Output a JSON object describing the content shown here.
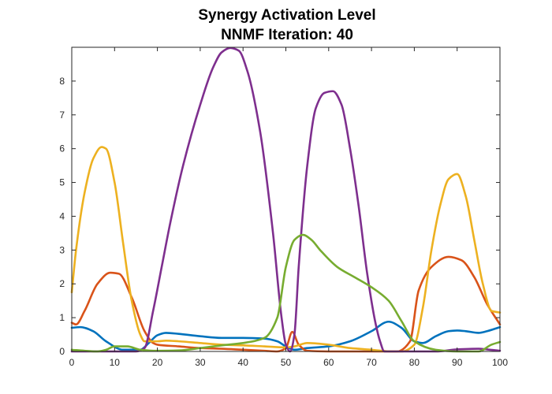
{
  "chart_data": {
    "type": "line",
    "title": "Synergy Activation Level",
    "subtitle": "NNMF Iteration: 40",
    "xlabel": "",
    "ylabel": "",
    "xlim": [
      0,
      100
    ],
    "ylim": [
      0,
      9
    ],
    "xticks": [
      "0",
      "10",
      "20",
      "30",
      "40",
      "50",
      "60",
      "70",
      "80",
      "90",
      "100"
    ],
    "yticks": [
      "0",
      "1",
      "2",
      "3",
      "4",
      "5",
      "6",
      "7",
      "8"
    ],
    "grid": false,
    "legend": "none",
    "series": [
      {
        "color": "#0072BD",
        "x": [
          0,
          2,
          5,
          8,
          12,
          16,
          18,
          20,
          22,
          25,
          30,
          35,
          40,
          45,
          48,
          50,
          52,
          55,
          60,
          65,
          70,
          74,
          77,
          80,
          82,
          85,
          88,
          90,
          92,
          95,
          97,
          100
        ],
        "y": [
          0.7,
          0.72,
          0.6,
          0.3,
          0.05,
          0.05,
          0.25,
          0.48,
          0.55,
          0.52,
          0.45,
          0.4,
          0.4,
          0.38,
          0.3,
          0.15,
          0.05,
          0.1,
          0.15,
          0.3,
          0.6,
          0.88,
          0.7,
          0.3,
          0.25,
          0.45,
          0.6,
          0.62,
          0.6,
          0.55,
          0.6,
          0.72
        ]
      },
      {
        "color": "#D95319",
        "x": [
          0,
          1,
          3,
          6,
          9,
          11,
          14,
          17,
          19,
          20,
          25,
          30,
          35,
          40,
          45,
          48,
          50,
          51.5,
          53,
          55,
          60,
          70,
          76,
          79,
          81,
          84,
          88,
          91,
          94,
          97,
          100
        ],
        "y": [
          0.85,
          0.8,
          1.2,
          2.0,
          2.33,
          2.3,
          1.6,
          0.6,
          0.25,
          0.2,
          0.15,
          0.1,
          0.08,
          0.05,
          0.02,
          0.0,
          0.1,
          0.58,
          0.2,
          0.02,
          0.0,
          0.0,
          0.0,
          0.3,
          1.8,
          2.5,
          2.8,
          2.7,
          2.2,
          1.4,
          0.8
        ]
      },
      {
        "color": "#EDB120",
        "x": [
          0,
          1,
          3,
          5,
          7,
          8,
          10,
          12,
          14,
          16,
          17,
          19,
          20,
          22,
          25,
          30,
          35,
          40,
          45,
          50,
          52,
          55,
          60,
          65,
          70,
          75,
          77,
          80,
          82,
          84,
          86,
          88,
          90,
          92,
          94,
          96,
          98,
          100
        ],
        "y": [
          1.75,
          3.0,
          4.7,
          5.7,
          6.05,
          6.0,
          5.0,
          3.2,
          1.5,
          0.5,
          0.3,
          0.3,
          0.3,
          0.32,
          0.3,
          0.25,
          0.2,
          0.18,
          0.15,
          0.12,
          0.15,
          0.25,
          0.2,
          0.1,
          0.05,
          0.0,
          0.0,
          0.2,
          1.3,
          3.0,
          4.3,
          5.1,
          5.25,
          4.6,
          3.3,
          2.0,
          1.2,
          1.15
        ]
      },
      {
        "color": "#7E2F8E",
        "x": [
          0,
          5,
          10,
          15,
          17,
          19,
          21,
          23,
          26,
          30,
          33,
          35,
          37,
          39,
          41,
          44,
          47,
          49,
          50,
          51,
          52,
          53,
          55,
          57,
          59,
          61,
          63,
          65,
          67,
          69,
          71,
          72,
          73,
          74,
          76,
          80,
          85,
          90,
          95,
          97,
          100
        ],
        "y": [
          0.0,
          0.0,
          0.0,
          0.0,
          0.1,
          1.2,
          2.5,
          3.8,
          5.5,
          7.3,
          8.4,
          8.85,
          8.98,
          8.9,
          8.3,
          6.5,
          3.5,
          1.0,
          0.2,
          0.0,
          0.5,
          2.5,
          5.5,
          7.2,
          7.65,
          7.7,
          7.3,
          6.0,
          4.3,
          2.3,
          0.8,
          0.3,
          0.0,
          0.0,
          0.0,
          0.0,
          0.0,
          0.06,
          0.08,
          0.06,
          0.02
        ]
      },
      {
        "color": "#77AC30",
        "x": [
          0,
          3,
          6,
          8,
          10,
          13,
          16,
          20,
          25,
          30,
          35,
          40,
          45,
          48,
          50,
          52,
          54,
          56,
          58,
          62,
          66,
          70,
          74,
          77,
          80,
          85,
          90,
          95,
          98,
          100
        ],
        "y": [
          0.05,
          0.02,
          0.0,
          0.05,
          0.15,
          0.15,
          0.05,
          0.02,
          0.03,
          0.1,
          0.18,
          0.25,
          0.4,
          1.0,
          2.5,
          3.3,
          3.45,
          3.3,
          3.0,
          2.5,
          2.2,
          1.9,
          1.5,
          0.9,
          0.3,
          0.05,
          0.0,
          0.0,
          0.2,
          0.28
        ]
      }
    ]
  }
}
